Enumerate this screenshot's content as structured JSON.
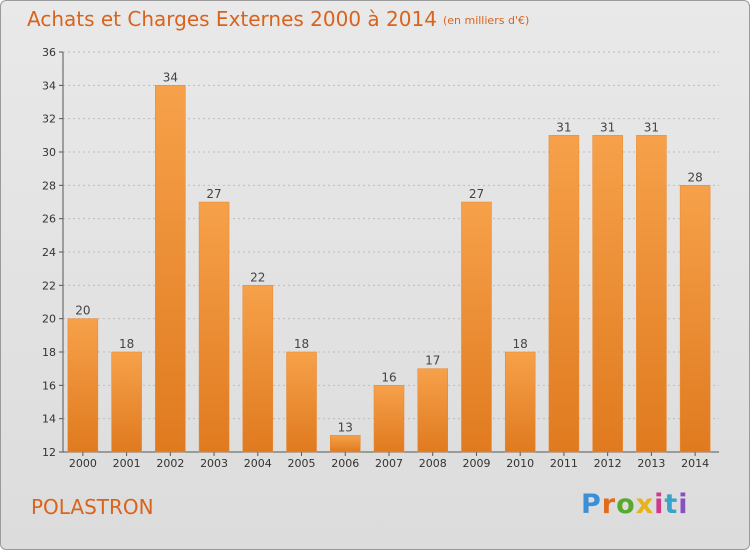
{
  "header": {
    "title": "Achats et Charges Externes 2000 à 2014",
    "unit": "(en milliers d'€)"
  },
  "footer": {
    "town": "POLASTRON",
    "logo": "Proxiti"
  },
  "colors": {
    "title": "#d9631c",
    "bar_top": "#f6a14a",
    "bar_bottom": "#e07a1f"
  },
  "chart_data": {
    "type": "bar",
    "title": "Achats et Charges Externes 2000 à 2014",
    "subtitle": "(en milliers d'€)",
    "categories": [
      "2000",
      "2001",
      "2002",
      "2003",
      "2004",
      "2005",
      "2006",
      "2007",
      "2008",
      "2009",
      "2010",
      "2011",
      "2012",
      "2013",
      "2014"
    ],
    "values": [
      20,
      18,
      34,
      27,
      22,
      18,
      13,
      16,
      17,
      27,
      18,
      31,
      31,
      31,
      28
    ],
    "ylim": [
      12,
      36
    ],
    "yticks": [
      12,
      14,
      16,
      18,
      20,
      22,
      24,
      26,
      28,
      30,
      32,
      34,
      36
    ],
    "grid": true,
    "data_labels": true
  }
}
